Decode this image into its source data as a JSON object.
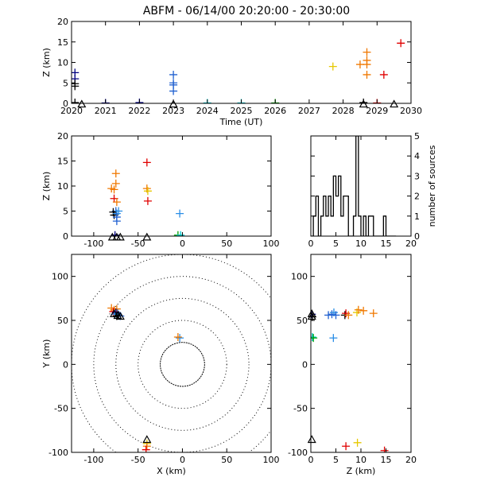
{
  "title": "ABFM - 06/14/00 20:20:00 - 20:30:00",
  "colors": {
    "black": "#000000",
    "navy": "#00007f",
    "blue": "#2060d0",
    "sky": "#2a8ee6",
    "cyan": "#00c8d0",
    "green": "#00a000",
    "yellow": "#e6c800",
    "orange": "#f07800",
    "red": "#e00000"
  },
  "chart_data": [
    {
      "id": "time_height",
      "type": "scatter",
      "xlabel": "Time (UT)",
      "ylabel": "Z (km)",
      "xlim": [
        2020,
        2030
      ],
      "ylim": [
        0,
        20
      ],
      "xticks": [
        "2020",
        "2021",
        "2022",
        "2023",
        "2024",
        "2025",
        "2026",
        "2027",
        "2028",
        "2029",
        "2030"
      ],
      "yticks": [
        "0",
        "5",
        "10",
        "15",
        "20"
      ],
      "points": [
        {
          "x": 2020.1,
          "y": 7.5,
          "c": "navy"
        },
        {
          "x": 2020.1,
          "y": 6.0,
          "c": "navy"
        },
        {
          "x": 2020.1,
          "y": 4.8,
          "c": "black"
        },
        {
          "x": 2020.1,
          "y": 4.2,
          "c": "black"
        },
        {
          "x": 2020.1,
          "y": 0.2,
          "c": "black"
        },
        {
          "x": 2021.0,
          "y": 0.1,
          "c": "navy"
        },
        {
          "x": 2022.0,
          "y": 0.2,
          "c": "navy"
        },
        {
          "x": 2023.0,
          "y": 7.0,
          "c": "blue"
        },
        {
          "x": 2023.0,
          "y": 5.0,
          "c": "blue"
        },
        {
          "x": 2023.0,
          "y": 4.5,
          "c": "blue"
        },
        {
          "x": 2023.0,
          "y": 3.0,
          "c": "blue"
        },
        {
          "x": 2024.0,
          "y": 0.1,
          "c": "cyan"
        },
        {
          "x": 2025.0,
          "y": 0.1,
          "c": "cyan"
        },
        {
          "x": 2026.0,
          "y": 0.1,
          "c": "green"
        },
        {
          "x": 2027.7,
          "y": 9.0,
          "c": "yellow"
        },
        {
          "x": 2028.5,
          "y": 9.5,
          "c": "orange"
        },
        {
          "x": 2028.7,
          "y": 12.5,
          "c": "orange"
        },
        {
          "x": 2028.7,
          "y": 10.5,
          "c": "orange"
        },
        {
          "x": 2028.7,
          "y": 9.5,
          "c": "orange"
        },
        {
          "x": 2028.7,
          "y": 7.0,
          "c": "orange"
        },
        {
          "x": 2028.6,
          "y": 0.2,
          "c": "black"
        },
        {
          "x": 2029.0,
          "y": 0.1,
          "c": "red"
        },
        {
          "x": 2029.2,
          "y": 7.0,
          "c": "red"
        },
        {
          "x": 2029.7,
          "y": 14.7,
          "c": "red"
        }
      ],
      "stations": [
        {
          "x": 2020.3,
          "y": -0.3
        },
        {
          "x": 2023.0,
          "y": -0.3
        },
        {
          "x": 2028.6,
          "y": -0.3
        },
        {
          "x": 2029.5,
          "y": -0.3
        }
      ]
    },
    {
      "id": "x_height",
      "type": "scatter",
      "xlabel": "",
      "ylabel": "Z (km)",
      "xlim": [
        -125,
        100
      ],
      "ylim": [
        0,
        20
      ],
      "xticks": [
        "-100",
        "-50",
        "0",
        "50",
        "100"
      ],
      "yticks": [
        "0",
        "5",
        "10",
        "15",
        "20"
      ],
      "points": [
        {
          "x": -80,
          "y": 9.5,
          "c": "orange"
        },
        {
          "x": -77,
          "y": 9.3,
          "c": "orange"
        },
        {
          "x": -75,
          "y": 12.5,
          "c": "orange"
        },
        {
          "x": -75,
          "y": 10.5,
          "c": "orange"
        },
        {
          "x": -77,
          "y": 7.5,
          "c": "red"
        },
        {
          "x": -74,
          "y": 6.8,
          "c": "orange"
        },
        {
          "x": -75,
          "y": 5.0,
          "c": "blue"
        },
        {
          "x": -72,
          "y": 5.0,
          "c": "sky"
        },
        {
          "x": -78,
          "y": 4.8,
          "c": "black"
        },
        {
          "x": -77,
          "y": 4.2,
          "c": "black"
        },
        {
          "x": -74,
          "y": 4.5,
          "c": "sky"
        },
        {
          "x": -74,
          "y": 3.8,
          "c": "blue"
        },
        {
          "x": -74,
          "y": 3.0,
          "c": "blue"
        },
        {
          "x": -76,
          "y": 0.2,
          "c": "navy"
        },
        {
          "x": -40,
          "y": 14.7,
          "c": "red"
        },
        {
          "x": -40,
          "y": 9.5,
          "c": "orange"
        },
        {
          "x": -39,
          "y": 9.0,
          "c": "yellow"
        },
        {
          "x": -39,
          "y": 7.0,
          "c": "red"
        },
        {
          "x": -3,
          "y": 4.5,
          "c": "sky"
        },
        {
          "x": -5,
          "y": 0.2,
          "c": "green"
        },
        {
          "x": -2,
          "y": 0.2,
          "c": "cyan"
        }
      ],
      "stations": [
        {
          "x": -79,
          "y": -0.3
        },
        {
          "x": -74,
          "y": -0.3
        },
        {
          "x": -70,
          "y": -0.3
        },
        {
          "x": -40,
          "y": -0.3
        }
      ]
    },
    {
      "id": "histogram",
      "type": "bar",
      "xlabel": "",
      "ylabel": "number of sources",
      "xlim": [
        0,
        20
      ],
      "ylim": [
        0,
        5
      ],
      "xticks": [
        "0",
        "5",
        "10",
        "15",
        "20"
      ],
      "yticks": [
        "0",
        "1",
        "2",
        "3",
        "4",
        "5"
      ],
      "bin_width": 0.5,
      "bin_start": 0,
      "counts": [
        0,
        1,
        2,
        0,
        1,
        2,
        1,
        2,
        1,
        3,
        2,
        3,
        1,
        2,
        2,
        0,
        0,
        1,
        5,
        1,
        0,
        1,
        0,
        1,
        1,
        0,
        0,
        0,
        0,
        1,
        0,
        0,
        0,
        0
      ]
    },
    {
      "id": "plan_view",
      "type": "scatter",
      "xlabel": "X (km)",
      "ylabel": "Y (km)",
      "xlim": [
        -125,
        100
      ],
      "ylim": [
        -100,
        125
      ],
      "xticks": [
        "-100",
        "-50",
        "0",
        "50",
        "100"
      ],
      "yticks": [
        "-100",
        "-50",
        "0",
        "50",
        "100"
      ],
      "range_rings_km": [
        25,
        50,
        75,
        100,
        125
      ],
      "points": [
        {
          "x": -80,
          "y": 64,
          "c": "orange"
        },
        {
          "x": -77,
          "y": 62,
          "c": "orange"
        },
        {
          "x": -74,
          "y": 63,
          "c": "orange"
        },
        {
          "x": -78,
          "y": 60,
          "c": "red"
        },
        {
          "x": -75,
          "y": 59,
          "c": "navy"
        },
        {
          "x": -73,
          "y": 58,
          "c": "blue"
        },
        {
          "x": -76,
          "y": 57,
          "c": "sky"
        },
        {
          "x": -72,
          "y": 56,
          "c": "black"
        },
        {
          "x": -70,
          "y": 55,
          "c": "blue"
        },
        {
          "x": -74,
          "y": 55,
          "c": "black"
        },
        {
          "x": -3,
          "y": 30,
          "c": "sky"
        },
        {
          "x": -5,
          "y": 31,
          "c": "orange"
        },
        {
          "x": -40,
          "y": -90,
          "c": "yellow"
        },
        {
          "x": -40,
          "y": -93,
          "c": "orange"
        },
        {
          "x": -41,
          "y": -97,
          "c": "red"
        }
      ],
      "stations": [
        {
          "x": -77,
          "y": 57
        },
        {
          "x": -73,
          "y": 55
        },
        {
          "x": -70,
          "y": 54
        },
        {
          "x": -40,
          "y": -86
        }
      ]
    },
    {
      "id": "z_y_view",
      "type": "scatter",
      "xlabel": "Z (km)",
      "ylabel": "",
      "xlim": [
        0,
        20
      ],
      "ylim": [
        -100,
        125
      ],
      "xticks": [
        "0",
        "5",
        "10",
        "15",
        "20"
      ],
      "yticks": [
        "-100",
        "-50",
        "0",
        "50",
        "100"
      ],
      "points": [
        {
          "x": 0.2,
          "y": 57,
          "c": "navy"
        },
        {
          "x": 0.3,
          "y": 54,
          "c": "black"
        },
        {
          "x": 0.3,
          "y": 31,
          "c": "cyan"
        },
        {
          "x": 0.5,
          "y": 30,
          "c": "green"
        },
        {
          "x": 3.5,
          "y": 56,
          "c": "blue"
        },
        {
          "x": 4.2,
          "y": 57,
          "c": "blue"
        },
        {
          "x": 4.6,
          "y": 59,
          "c": "sky"
        },
        {
          "x": 5.0,
          "y": 56,
          "c": "blue"
        },
        {
          "x": 4.5,
          "y": 30,
          "c": "sky"
        },
        {
          "x": 6.8,
          "y": 56,
          "c": "black"
        },
        {
          "x": 7.0,
          "y": 58,
          "c": "red"
        },
        {
          "x": 7.5,
          "y": 56,
          "c": "orange"
        },
        {
          "x": 9.2,
          "y": 59,
          "c": "yellow"
        },
        {
          "x": 9.5,
          "y": 62,
          "c": "orange"
        },
        {
          "x": 10.5,
          "y": 61,
          "c": "orange"
        },
        {
          "x": 12.5,
          "y": 58,
          "c": "orange"
        },
        {
          "x": 7.0,
          "y": -93,
          "c": "red"
        },
        {
          "x": 9.3,
          "y": -89,
          "c": "yellow"
        },
        {
          "x": 14.7,
          "y": -98,
          "c": "red"
        }
      ],
      "stations": [
        {
          "x": 0.2,
          "y": 57
        },
        {
          "x": 0.2,
          "y": 54
        },
        {
          "x": 0.2,
          "y": -86
        }
      ]
    }
  ]
}
